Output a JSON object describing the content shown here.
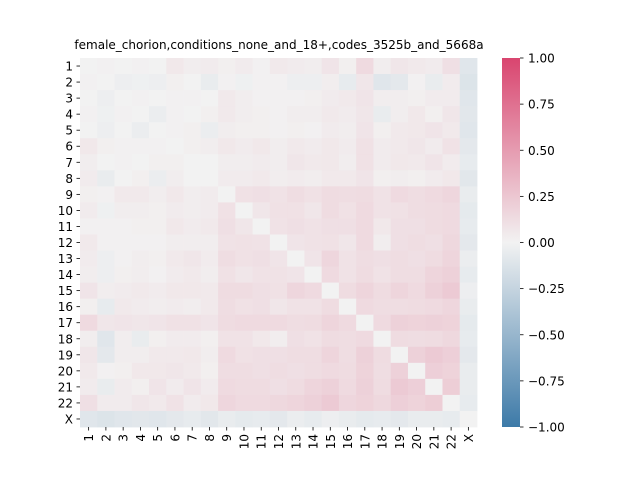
{
  "chart_data": {
    "type": "heatmap",
    "title": "female_chorion,conditions_none_and_18+,codes_3525b_and_5668a",
    "xlabel": "",
    "ylabel": "",
    "labels": [
      "1",
      "2",
      "3",
      "4",
      "5",
      "6",
      "7",
      "8",
      "9",
      "10",
      "11",
      "12",
      "13",
      "14",
      "15",
      "16",
      "17",
      "18",
      "19",
      "20",
      "21",
      "22",
      "X"
    ],
    "colorbar": {
      "min": -1.0,
      "max": 1.0,
      "ticks": [
        "1.00",
        "0.75",
        "0.50",
        "0.25",
        "0.00",
        "−0.25",
        "−0.50",
        "−0.75",
        "−1.00"
      ],
      "tick_values": [
        1.0,
        0.75,
        0.5,
        0.25,
        0.0,
        -0.25,
        -0.5,
        -0.75,
        -1.0
      ],
      "colors": {
        "low": "#3d7aa8",
        "mid": "#f2f2f2",
        "high": "#d9456f"
      }
    },
    "values": [
      [
        0.0,
        0.01,
        0.0,
        0.01,
        0.0,
        0.06,
        0.03,
        0.04,
        0.02,
        0.04,
        0.01,
        0.05,
        0.04,
        0.03,
        0.08,
        0.02,
        0.14,
        0.03,
        0.07,
        0.05,
        0.04,
        0.11,
        -0.1
      ],
      [
        0.01,
        0.0,
        -0.03,
        -0.02,
        -0.03,
        0.02,
        0.0,
        -0.05,
        0.01,
        -0.02,
        0.01,
        0.01,
        -0.03,
        -0.03,
        0.03,
        -0.06,
        0.07,
        -0.1,
        -0.08,
        0.01,
        -0.05,
        0.04,
        -0.12
      ],
      [
        0.0,
        -0.03,
        0.0,
        0.01,
        0.0,
        0.01,
        0.01,
        0.0,
        0.05,
        0.03,
        0.01,
        0.01,
        0.01,
        0.02,
        0.04,
        0.05,
        0.08,
        0.03,
        0.03,
        0.02,
        0.04,
        0.04,
        -0.1
      ],
      [
        0.01,
        -0.02,
        0.01,
        0.0,
        -0.04,
        0.01,
        0.0,
        0.02,
        0.05,
        0.03,
        0.02,
        0.01,
        0.03,
        0.03,
        0.05,
        0.04,
        0.07,
        -0.05,
        0.03,
        0.06,
        0.02,
        0.07,
        -0.09
      ],
      [
        0.0,
        -0.03,
        0.0,
        -0.04,
        0.0,
        0.01,
        0.02,
        -0.04,
        0.03,
        0.02,
        0.02,
        0.01,
        0.02,
        0.01,
        0.04,
        0.03,
        0.08,
        0.02,
        0.05,
        0.06,
        0.08,
        0.05,
        -0.1
      ],
      [
        0.06,
        0.02,
        0.01,
        0.01,
        0.01,
        0.0,
        0.02,
        0.03,
        0.06,
        0.04,
        0.06,
        0.03,
        0.05,
        0.04,
        0.06,
        0.04,
        0.1,
        0.04,
        0.05,
        0.07,
        0.04,
        0.09,
        -0.08
      ],
      [
        0.03,
        0.0,
        0.01,
        0.0,
        0.02,
        0.02,
        0.0,
        0.0,
        0.03,
        0.03,
        0.04,
        0.03,
        0.07,
        0.05,
        0.06,
        0.03,
        0.1,
        0.04,
        0.06,
        0.05,
        0.08,
        0.04,
        -0.06
      ],
      [
        0.04,
        -0.05,
        0.0,
        0.02,
        -0.04,
        0.03,
        0.0,
        0.0,
        0.04,
        0.04,
        0.05,
        0.03,
        0.04,
        0.03,
        0.05,
        0.05,
        0.08,
        0.02,
        0.03,
        0.02,
        0.04,
        0.06,
        -0.09
      ],
      [
        0.02,
        0.01,
        0.05,
        0.05,
        0.03,
        0.06,
        0.03,
        0.04,
        0.0,
        0.1,
        0.11,
        0.09,
        0.12,
        0.1,
        0.13,
        0.12,
        0.13,
        0.09,
        0.14,
        0.12,
        0.14,
        0.16,
        -0.05
      ],
      [
        0.04,
        -0.02,
        0.03,
        0.03,
        0.02,
        0.04,
        0.03,
        0.04,
        0.1,
        0.0,
        0.07,
        0.1,
        0.1,
        0.07,
        0.13,
        0.1,
        0.14,
        0.09,
        0.1,
        0.12,
        0.13,
        0.14,
        -0.07
      ],
      [
        0.01,
        0.01,
        0.01,
        0.02,
        0.02,
        0.06,
        0.04,
        0.05,
        0.11,
        0.07,
        0.0,
        0.09,
        0.11,
        0.09,
        0.11,
        0.11,
        0.14,
        0.06,
        0.11,
        0.11,
        0.13,
        0.14,
        -0.06
      ],
      [
        0.05,
        0.01,
        0.01,
        0.01,
        0.01,
        0.03,
        0.03,
        0.03,
        0.09,
        0.1,
        0.09,
        0.0,
        0.08,
        0.09,
        0.1,
        0.07,
        0.14,
        0.03,
        0.11,
        0.12,
        0.11,
        0.15,
        -0.08
      ],
      [
        0.04,
        -0.03,
        0.01,
        0.03,
        0.02,
        0.05,
        0.07,
        0.04,
        0.12,
        0.1,
        0.11,
        0.08,
        0.0,
        0.08,
        0.16,
        0.09,
        0.12,
        0.11,
        0.12,
        0.11,
        0.13,
        0.17,
        -0.04
      ],
      [
        0.03,
        -0.03,
        0.02,
        0.03,
        0.01,
        0.04,
        0.05,
        0.03,
        0.1,
        0.07,
        0.09,
        0.09,
        0.08,
        0.0,
        0.14,
        0.09,
        0.13,
        0.09,
        0.12,
        0.12,
        0.17,
        0.19,
        -0.06
      ],
      [
        0.08,
        0.03,
        0.04,
        0.05,
        0.04,
        0.06,
        0.06,
        0.05,
        0.13,
        0.13,
        0.11,
        0.1,
        0.16,
        0.14,
        0.0,
        0.13,
        0.17,
        0.13,
        0.17,
        0.14,
        0.19,
        0.23,
        -0.03
      ],
      [
        0.02,
        -0.06,
        0.05,
        0.04,
        0.03,
        0.04,
        0.03,
        0.05,
        0.12,
        0.1,
        0.11,
        0.07,
        0.09,
        0.09,
        0.13,
        0.0,
        0.14,
        0.12,
        0.12,
        0.13,
        0.14,
        0.16,
        -0.05
      ],
      [
        0.14,
        0.07,
        0.08,
        0.07,
        0.08,
        0.1,
        0.1,
        0.08,
        0.13,
        0.14,
        0.14,
        0.14,
        0.12,
        0.13,
        0.17,
        0.14,
        0.0,
        0.14,
        0.19,
        0.18,
        0.19,
        0.18,
        -0.07
      ],
      [
        0.03,
        -0.1,
        0.03,
        -0.05,
        0.02,
        0.04,
        0.04,
        0.02,
        0.09,
        0.09,
        0.06,
        0.03,
        0.11,
        0.09,
        0.13,
        0.12,
        0.14,
        0.0,
        0.13,
        0.12,
        0.13,
        0.15,
        -0.06
      ],
      [
        0.07,
        -0.08,
        0.03,
        0.03,
        0.05,
        0.05,
        0.06,
        0.03,
        0.14,
        0.1,
        0.11,
        0.11,
        0.12,
        0.12,
        0.17,
        0.12,
        0.19,
        0.13,
        0.0,
        0.19,
        0.23,
        0.2,
        -0.08
      ],
      [
        0.05,
        0.01,
        0.02,
        0.06,
        0.06,
        0.07,
        0.05,
        0.02,
        0.12,
        0.12,
        0.11,
        0.12,
        0.11,
        0.12,
        0.14,
        0.13,
        0.18,
        0.12,
        0.19,
        0.0,
        0.2,
        0.18,
        -0.05
      ],
      [
        0.04,
        -0.05,
        0.04,
        0.02,
        0.08,
        0.04,
        0.08,
        0.04,
        0.14,
        0.13,
        0.13,
        0.11,
        0.13,
        0.17,
        0.19,
        0.14,
        0.19,
        0.13,
        0.23,
        0.2,
        0.0,
        0.21,
        -0.05
      ],
      [
        0.11,
        0.04,
        0.04,
        0.07,
        0.05,
        0.09,
        0.04,
        0.06,
        0.16,
        0.14,
        0.14,
        0.15,
        0.17,
        0.19,
        0.23,
        0.16,
        0.18,
        0.15,
        0.2,
        0.18,
        0.21,
        0.0,
        -0.06
      ],
      [
        -0.1,
        -0.12,
        -0.1,
        -0.09,
        -0.1,
        -0.08,
        -0.06,
        -0.09,
        -0.05,
        -0.07,
        -0.06,
        -0.08,
        -0.04,
        -0.06,
        -0.03,
        -0.05,
        -0.07,
        -0.06,
        -0.08,
        -0.05,
        -0.05,
        -0.06,
        0.0
      ]
    ]
  }
}
